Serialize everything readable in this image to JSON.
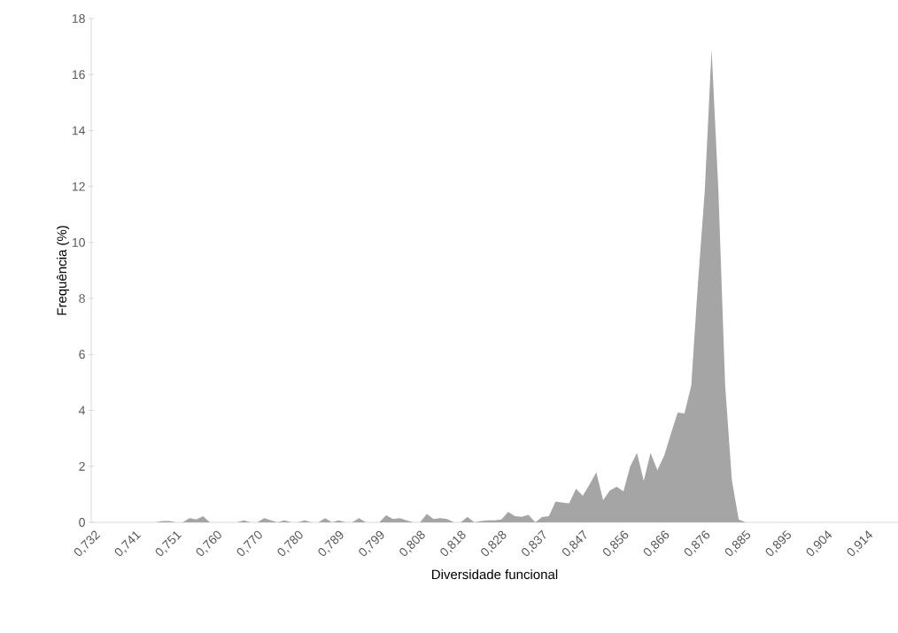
{
  "chart_data": {
    "type": "area",
    "xlabel": "Diversidade funcional",
    "ylabel": "Frequência (%)",
    "categories": [
      "0,732",
      null,
      null,
      null,
      null,
      null,
      "0,741",
      null,
      null,
      null,
      null,
      null,
      "0,751",
      null,
      null,
      null,
      null,
      null,
      "0,760",
      null,
      null,
      null,
      null,
      null,
      "0,770",
      null,
      null,
      null,
      null,
      null,
      "0,780",
      null,
      null,
      null,
      null,
      null,
      "0,789",
      null,
      null,
      null,
      null,
      null,
      "0,799",
      null,
      null,
      null,
      null,
      null,
      "0,808",
      null,
      null,
      null,
      null,
      null,
      "0,818",
      null,
      null,
      null,
      null,
      null,
      "0,828",
      null,
      null,
      null,
      null,
      null,
      "0,837",
      null,
      null,
      null,
      null,
      null,
      "0,847",
      null,
      null,
      null,
      null,
      null,
      "0,856",
      null,
      null,
      null,
      null,
      null,
      "0,866",
      null,
      null,
      null,
      null,
      null,
      "0,876",
      null,
      null,
      null,
      null,
      null,
      "0,885",
      null,
      null,
      null,
      null,
      null,
      "0,895",
      null,
      null,
      null,
      null,
      null,
      "0,904",
      null,
      null,
      null,
      null,
      null,
      "0,914",
      null,
      null,
      null,
      null
    ],
    "values": [
      0,
      0,
      0,
      0,
      0,
      0,
      0,
      0,
      0,
      0,
      0.05,
      0.05,
      0,
      0,
      0.15,
      0.1,
      0.22,
      0,
      0,
      0,
      0,
      0,
      0.07,
      0,
      0,
      0.15,
      0.07,
      0,
      0.07,
      0,
      0,
      0.07,
      0,
      0,
      0.15,
      0,
      0.07,
      0,
      0,
      0.15,
      0,
      0,
      0,
      0.25,
      0.12,
      0.15,
      0.07,
      0,
      0,
      0.3,
      0.12,
      0.15,
      0.12,
      0,
      0,
      0.2,
      0,
      0.05,
      0.07,
      0.07,
      0.1,
      0.37,
      0.22,
      0.2,
      0.27,
      0,
      0.19,
      0.22,
      0.74,
      0.7,
      0.68,
      1.2,
      0.95,
      1.35,
      1.79,
      0.79,
      1.14,
      1.27,
      1.11,
      2.0,
      2.48,
      1.48,
      2.48,
      1.87,
      2.37,
      3.16,
      3.92,
      3.89,
      4.88,
      8.57,
      11.86,
      16.9,
      11.9,
      4.9,
      1.5,
      0.1,
      0,
      0,
      0,
      0,
      0,
      0,
      0,
      0,
      0,
      0,
      0,
      0,
      0,
      0,
      0,
      0,
      0,
      0,
      0,
      0,
      0,
      0,
      0
    ],
    "color": "#a5a5a5",
    "ylim": [
      0,
      18
    ],
    "yticks": [
      0,
      2,
      4,
      6,
      8,
      10,
      12,
      14,
      16,
      18
    ]
  }
}
